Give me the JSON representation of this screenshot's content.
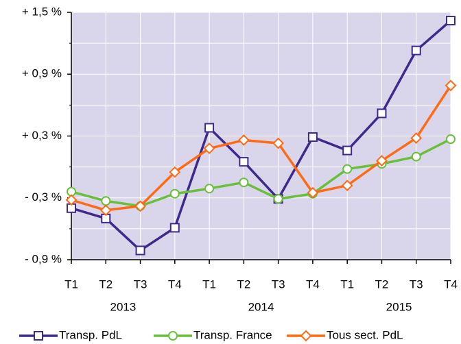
{
  "chart_data": {
    "type": "line",
    "categories": [
      "T1",
      "T2",
      "T3",
      "T4",
      "T1",
      "T2",
      "T3",
      "T4",
      "T1",
      "T2",
      "T3",
      "T4"
    ],
    "category_groups": [
      "2013",
      "2014",
      "2015"
    ],
    "series": [
      {
        "name": "Transp. PdL",
        "color": "#3f2a8c",
        "marker": "square",
        "values": [
          -0.4,
          -0.5,
          -0.81,
          -0.59,
          0.38,
          0.05,
          -0.31,
          0.29,
          0.16,
          0.52,
          1.13,
          1.42
        ]
      },
      {
        "name": "Transp. France",
        "color": "#6abf3a",
        "marker": "circle",
        "values": [
          -0.24,
          -0.33,
          -0.38,
          -0.26,
          -0.21,
          -0.15,
          -0.31,
          -0.26,
          -0.02,
          0.03,
          0.1,
          0.27
        ]
      },
      {
        "name": "Tous sect. PdL",
        "color": "#ff6a13",
        "marker": "diamond",
        "values": [
          -0.32,
          -0.42,
          -0.38,
          -0.05,
          0.18,
          0.26,
          0.23,
          -0.25,
          -0.18,
          0.06,
          0.28,
          0.79
        ]
      }
    ],
    "ylim": [
      -0.9,
      1.5
    ],
    "yticks": [
      {
        "value": -0.9,
        "label": "- 0,9 %"
      },
      {
        "value": -0.3,
        "label": "- 0,3 %"
      },
      {
        "value": 0.3,
        "label": "+ 0,3 %"
      },
      {
        "value": 0.9,
        "label": "+ 0,9 %"
      },
      {
        "value": 1.5,
        "label": "+ 1,5 %"
      }
    ],
    "minor_yticks": [
      -0.6,
      0,
      0.6,
      1.2
    ],
    "grid": true,
    "legend": "bottom",
    "plot_background": "#d9d5eb"
  }
}
